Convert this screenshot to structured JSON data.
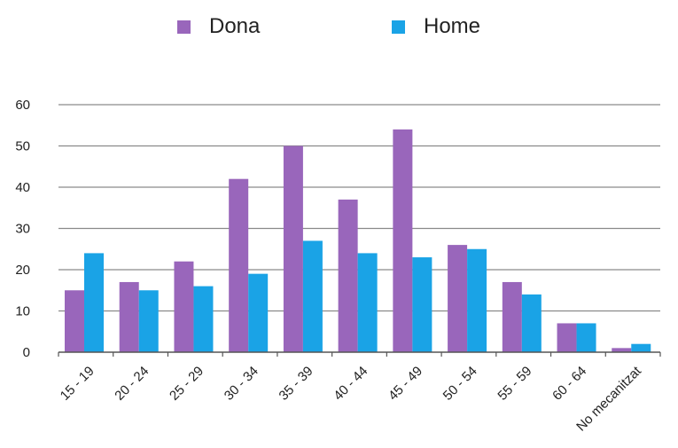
{
  "chart_data": {
    "type": "bar",
    "categories": [
      "15 - 19",
      "20 - 24",
      "25 - 29",
      "30 - 34",
      "35 - 39",
      "40 - 44",
      "45 - 49",
      "50 - 54",
      "55 - 59",
      "60 - 64",
      "No mecanitzat"
    ],
    "series": [
      {
        "name": "Dona",
        "color": "#9966BB",
        "values": [
          15,
          17,
          22,
          42,
          50,
          37,
          54,
          26,
          17,
          7,
          1
        ]
      },
      {
        "name": "Home",
        "color": "#1AA3E6",
        "values": [
          24,
          15,
          16,
          19,
          27,
          24,
          23,
          25,
          14,
          7,
          2
        ]
      }
    ],
    "ylim": [
      0,
      60
    ],
    "yticks": [
      0,
      10,
      20,
      30,
      40,
      50,
      60
    ],
    "grid": true,
    "legend_position": "top"
  }
}
